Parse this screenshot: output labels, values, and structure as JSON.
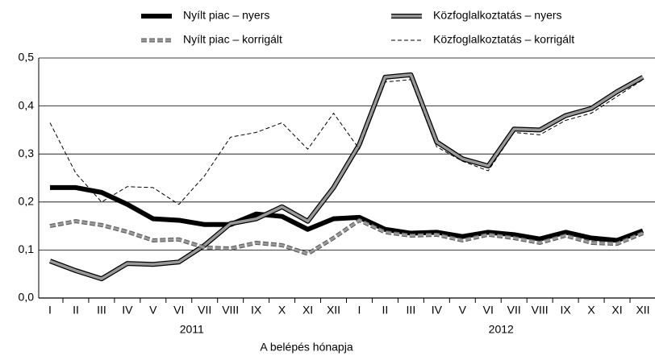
{
  "chart_data": {
    "type": "line",
    "categories": [
      "I",
      "II",
      "III",
      "IV",
      "V",
      "VI",
      "VII",
      "VIII",
      "IX",
      "X",
      "XI",
      "XII",
      "I",
      "II",
      "III",
      "IV",
      "V",
      "VI",
      "VII",
      "VIII",
      "IX",
      "X",
      "XI",
      "XII"
    ],
    "x_groups": [
      "2011",
      "2012"
    ],
    "xlabel": "A belépés hónapja",
    "ylim": [
      0,
      0.5
    ],
    "yticks": [
      {
        "value": 0,
        "label": "0,0"
      },
      {
        "value": 0.1,
        "label": "0,1"
      },
      {
        "value": 0.2,
        "label": "0,2"
      },
      {
        "value": 0.3,
        "label": "0,3"
      },
      {
        "value": 0.4,
        "label": "0,4"
      },
      {
        "value": 0.5,
        "label": "0,5"
      }
    ],
    "grid": true,
    "series": [
      {
        "name": "Nyílt piac – nyers",
        "color": "#000000",
        "values": [
          0.23,
          0.23,
          0.22,
          0.195,
          0.165,
          0.162,
          0.153,
          0.153,
          0.175,
          0.17,
          0.143,
          0.165,
          0.168,
          0.143,
          0.135,
          0.137,
          0.128,
          0.137,
          0.132,
          0.123,
          0.137,
          0.125,
          0.12,
          0.14
        ]
      },
      {
        "name": "Közfoglalkoztatás – nyers",
        "color": "#999999",
        "values": [
          0.077,
          0.057,
          0.04,
          0.072,
          0.07,
          0.075,
          0.11,
          0.155,
          0.165,
          0.19,
          0.16,
          0.23,
          0.32,
          0.46,
          0.465,
          0.325,
          0.29,
          0.275,
          0.352,
          0.35,
          0.38,
          0.395,
          0.43,
          0.46
        ]
      },
      {
        "name": "Nyílt piac – korrigált",
        "color": "#999999",
        "values": [
          0.15,
          0.16,
          0.152,
          0.138,
          0.12,
          0.122,
          0.105,
          0.103,
          0.115,
          0.11,
          0.092,
          0.125,
          0.162,
          0.137,
          0.13,
          0.132,
          0.12,
          0.132,
          0.125,
          0.115,
          0.13,
          0.115,
          0.113,
          0.135
        ]
      },
      {
        "name": "Közfoglalkoztatás – korrigált",
        "color": "#000000",
        "values": [
          0.365,
          0.26,
          0.2,
          0.232,
          0.23,
          0.195,
          0.255,
          0.335,
          0.345,
          0.365,
          0.31,
          0.385,
          0.31,
          0.45,
          0.455,
          0.315,
          0.285,
          0.265,
          0.345,
          0.34,
          0.37,
          0.385,
          0.42,
          0.455
        ]
      }
    ]
  }
}
